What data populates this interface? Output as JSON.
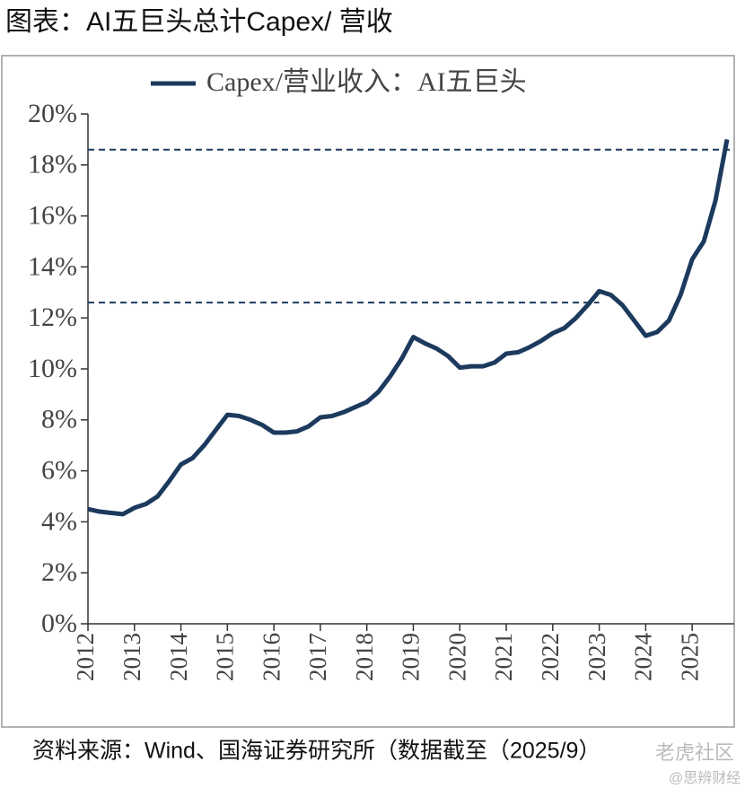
{
  "chart_data": {
    "type": "line",
    "title": "图表：AI五巨头总计Capex/ 营收",
    "source": "资料来源：Wind、国海证券研究所（数据截至（2025/9）",
    "watermark": "老虎社区",
    "watermark_sub": "@思辨财经",
    "x": [
      2012.0,
      2012.25,
      2012.5,
      2012.75,
      2013.0,
      2013.25,
      2013.5,
      2013.75,
      2014.0,
      2014.25,
      2014.5,
      2014.75,
      2015.0,
      2015.25,
      2015.5,
      2015.75,
      2016.0,
      2016.25,
      2016.5,
      2016.75,
      2017.0,
      2017.25,
      2017.5,
      2017.75,
      2018.0,
      2018.25,
      2018.5,
      2018.75,
      2019.0,
      2019.25,
      2019.5,
      2019.75,
      2020.0,
      2020.25,
      2020.5,
      2020.75,
      2021.0,
      2021.25,
      2021.5,
      2021.75,
      2022.0,
      2022.25,
      2022.5,
      2022.75,
      2023.0,
      2023.25,
      2023.5,
      2023.75,
      2024.0,
      2024.25,
      2024.5,
      2024.75,
      2025.0,
      2025.25,
      2025.5,
      2025.75
    ],
    "series": [
      {
        "name": "Capex/营业收入：AI五巨头",
        "color": "#1c3a5e",
        "values": [
          4.5,
          4.4,
          4.35,
          4.3,
          4.55,
          4.7,
          5.0,
          5.6,
          6.25,
          6.5,
          7.0,
          7.6,
          8.2,
          8.15,
          8.0,
          7.8,
          7.5,
          7.5,
          7.55,
          7.75,
          8.1,
          8.15,
          8.3,
          8.5,
          8.7,
          9.1,
          9.7,
          10.4,
          11.25,
          11.0,
          10.8,
          10.5,
          10.05,
          10.1,
          10.1,
          10.25,
          10.6,
          10.65,
          10.85,
          11.1,
          11.4,
          11.6,
          12.0,
          12.5,
          13.05,
          12.9,
          12.5,
          11.9,
          11.3,
          11.45,
          11.9,
          12.9,
          14.3,
          15.0,
          16.6,
          19.0
        ]
      }
    ],
    "reference_lines": [
      18.6,
      12.6
    ],
    "xlim": [
      2012,
      2025.75
    ],
    "xticks": [
      2012,
      2013,
      2014,
      2015,
      2016,
      2017,
      2018,
      2019,
      2020,
      2021,
      2022,
      2023,
      2024,
      2025
    ],
    "ylim": [
      0,
      20
    ],
    "yticks": [
      {
        "value": 0,
        "label": "0%"
      },
      {
        "value": 2,
        "label": "2%"
      },
      {
        "value": 4,
        "label": "4%"
      },
      {
        "value": 6,
        "label": "6%"
      },
      {
        "value": 8,
        "label": "8%"
      },
      {
        "value": 10,
        "label": "10%"
      },
      {
        "value": 12,
        "label": "12%"
      },
      {
        "value": 14,
        "label": "14%"
      },
      {
        "value": 16,
        "label": "16%"
      },
      {
        "value": 18,
        "label": "18%"
      },
      {
        "value": 20,
        "label": "20%"
      }
    ]
  }
}
